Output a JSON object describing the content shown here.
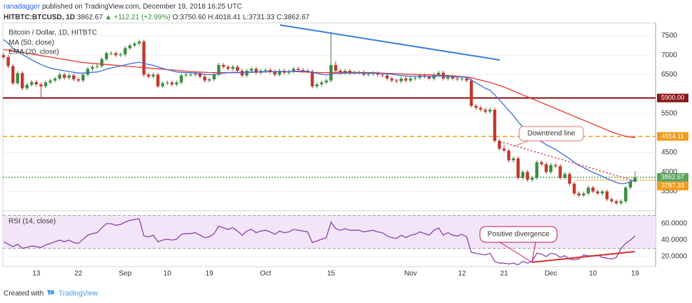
{
  "header": {
    "author": "ranadagger",
    "published": "published on TradingView.com, December 19, 2018 16:25 UTC",
    "quote": {
      "symbol": "HITBTC:BTCUSD, 1D",
      "price": "3862.67",
      "change": "▲ +112.21 (+2.99%)",
      "ohlc": "O:3750.60 H:4018.41 L:3731.33 C:3862.67"
    }
  },
  "chart_data": [
    {
      "type": "candlestick",
      "title": "Bitcoin / Dollar, 1D, HITBTC",
      "categories": [
        null,
        null,
        null,
        null,
        null,
        null,
        null,
        "13",
        null,
        null,
        null,
        null,
        null,
        null,
        null,
        null,
        "22",
        null,
        null,
        null,
        null,
        null,
        null,
        null,
        null,
        null,
        "Sep",
        null,
        null,
        null,
        null,
        null,
        null,
        null,
        null,
        "10",
        null,
        null,
        null,
        null,
        null,
        null,
        null,
        null,
        "19",
        null,
        null,
        null,
        null,
        null,
        null,
        null,
        null,
        null,
        null,
        null,
        "Oct",
        null,
        null,
        null,
        null,
        null,
        null,
        null,
        null,
        null,
        null,
        null,
        null,
        null,
        "15",
        null,
        null,
        null,
        null,
        null,
        null,
        null,
        null,
        null,
        null,
        null,
        null,
        null,
        null,
        null,
        null,
        "Nov",
        null,
        null,
        null,
        null,
        null,
        null,
        null,
        null,
        null,
        null,
        "12",
        null,
        null,
        null,
        null,
        null,
        null,
        null,
        null,
        "21",
        null,
        null,
        null,
        null,
        null,
        null,
        null,
        null,
        null,
        "Dec",
        null,
        null,
        null,
        null,
        null,
        null,
        null,
        null,
        "10",
        null,
        null,
        null,
        null,
        null,
        null,
        null,
        null,
        "19"
      ],
      "open": [
        7000,
        6950,
        6720,
        6280,
        6540,
        6150,
        6240,
        6310,
        6250,
        6200,
        6300,
        6350,
        6400,
        6500,
        6420,
        6480,
        6380,
        6350,
        6500,
        6650,
        6700,
        6720,
        6900,
        7050,
        7050,
        7000,
        7020,
        7180,
        7250,
        7300,
        7350,
        6500,
        6450,
        6500,
        6200,
        6280,
        6300,
        6250,
        6300,
        6480,
        6500,
        6500,
        6520,
        6450,
        6350,
        6380,
        6500,
        6750,
        6700,
        6650,
        6700,
        6600,
        6480,
        6600,
        6650,
        6550,
        6600,
        6620,
        6580,
        6500,
        6600,
        6550,
        6580,
        6650,
        6620,
        6600,
        6580,
        6200,
        6250,
        6300,
        6350,
        6750,
        6600,
        6550,
        6600,
        6550,
        6550,
        6560,
        6500,
        6520,
        6540,
        6500,
        6480,
        6400,
        6350,
        6330,
        6400,
        6350,
        6400,
        6420,
        6480,
        6450,
        6400,
        6500,
        6550,
        6400,
        6450,
        6400,
        6380,
        6400,
        6350,
        5700,
        5650,
        5600,
        5550,
        5600,
        4800,
        4600,
        4550,
        4300,
        4350,
        3850,
        4000,
        3800,
        3850,
        4250,
        4200,
        4000,
        4180,
        4150,
        3850,
        3950,
        3700,
        3450,
        3400,
        3450,
        3600,
        3500,
        3450,
        3500,
        3300,
        3250,
        3200,
        3250,
        3600,
        3750.6
      ],
      "high": [
        7050,
        7000,
        6770,
        6590,
        6590,
        6290,
        6360,
        6360,
        6300,
        6350,
        6400,
        6450,
        6550,
        6550,
        6530,
        6530,
        6430,
        6550,
        6700,
        6750,
        6770,
        6950,
        7100,
        7100,
        7100,
        7070,
        7230,
        7300,
        7350,
        7400,
        7400,
        6550,
        6550,
        6550,
        6330,
        6350,
        6350,
        6350,
        6530,
        6550,
        6550,
        6570,
        6570,
        6500,
        6430,
        6550,
        6800,
        6800,
        6750,
        6750,
        6750,
        6650,
        6650,
        6700,
        6700,
        6650,
        6670,
        6670,
        6630,
        6650,
        6650,
        6630,
        6700,
        6700,
        6670,
        6650,
        6630,
        6300,
        6350,
        6400,
        7600,
        6850,
        6650,
        6650,
        6650,
        6600,
        6610,
        6610,
        6570,
        6590,
        6590,
        6550,
        6530,
        6450,
        6400,
        6450,
        6450,
        6450,
        6470,
        6530,
        6530,
        6500,
        6550,
        6600,
        6600,
        6500,
        6500,
        6450,
        6450,
        6450,
        6400,
        5750,
        5700,
        5650,
        5650,
        5650,
        4850,
        4700,
        4600,
        4400,
        4400,
        4050,
        4050,
        3900,
        4300,
        4300,
        4250,
        4230,
        4230,
        4200,
        4000,
        4000,
        3750,
        3500,
        3500,
        3650,
        3650,
        3550,
        3550,
        3550,
        3350,
        3300,
        3300,
        3650,
        3800,
        4018.41
      ],
      "low": [
        6900,
        6670,
        6230,
        6230,
        6100,
        6100,
        6190,
        6200,
        5900,
        6150,
        6250,
        6300,
        6350,
        6370,
        6370,
        6330,
        6300,
        6300,
        6450,
        6600,
        6650,
        6670,
        6850,
        7000,
        6950,
        6950,
        6970,
        7130,
        7200,
        7250,
        6450,
        6400,
        6400,
        6150,
        6150,
        6230,
        6200,
        6200,
        6250,
        6430,
        6450,
        6450,
        6400,
        6300,
        6300,
        6330,
        6450,
        6650,
        6600,
        6600,
        6550,
        6430,
        6430,
        6550,
        6500,
        6500,
        6550,
        6530,
        6450,
        6450,
        6500,
        6500,
        6530,
        6570,
        6550,
        6530,
        6150,
        6150,
        6200,
        6250,
        6300,
        6550,
        6500,
        6500,
        6500,
        6500,
        6500,
        6450,
        6450,
        6470,
        6450,
        6430,
        6350,
        6300,
        6280,
        6280,
        6300,
        6300,
        6350,
        6370,
        6400,
        6350,
        6350,
        6450,
        6350,
        6350,
        6350,
        6330,
        6330,
        6300,
        5650,
        5600,
        5550,
        5500,
        5500,
        4750,
        4550,
        4500,
        4250,
        4250,
        3800,
        3800,
        3750,
        3750,
        3800,
        4150,
        3950,
        3950,
        4100,
        3800,
        3800,
        3650,
        3400,
        3350,
        3350,
        3400,
        3450,
        3400,
        3400,
        3250,
        3200,
        3150,
        3150,
        3200,
        3550,
        3731.33
      ],
      "close": [
        6950,
        6720,
        6280,
        6540,
        6150,
        6240,
        6310,
        6250,
        6200,
        6300,
        6350,
        6400,
        6500,
        6420,
        6480,
        6380,
        6350,
        6500,
        6650,
        6700,
        6720,
        6900,
        7050,
        7050,
        7000,
        7020,
        7180,
        7250,
        7300,
        7350,
        6500,
        6450,
        6500,
        6200,
        6280,
        6300,
        6250,
        6300,
        6480,
        6500,
        6500,
        6520,
        6450,
        6350,
        6380,
        6500,
        6750,
        6700,
        6650,
        6700,
        6600,
        6480,
        6600,
        6650,
        6550,
        6600,
        6620,
        6580,
        6500,
        6600,
        6550,
        6580,
        6650,
        6620,
        6600,
        6580,
        6200,
        6250,
        6300,
        6350,
        6750,
        6600,
        6550,
        6600,
        6550,
        6550,
        6560,
        6500,
        6520,
        6540,
        6500,
        6480,
        6400,
        6350,
        6330,
        6400,
        6350,
        6400,
        6420,
        6480,
        6450,
        6400,
        6500,
        6550,
        6400,
        6450,
        6400,
        6380,
        6400,
        6350,
        5700,
        5650,
        5600,
        5550,
        5600,
        4800,
        4600,
        4550,
        4300,
        4350,
        3850,
        4000,
        3800,
        3850,
        4250,
        4200,
        4000,
        4180,
        4150,
        3850,
        3950,
        3700,
        3450,
        3400,
        3450,
        3600,
        3500,
        3450,
        3500,
        3300,
        3250,
        3200,
        3250,
        3600,
        3750,
        3862.67
      ],
      "up_color": "#3d8b40",
      "down_color": "#c0392b",
      "series": [
        {
          "name": "MA (50, close)",
          "color": "#e53935",
          "values": [
            7150,
            7130,
            7110,
            7090,
            7070,
            7050,
            7030,
            7010,
            6990,
            6970,
            6950,
            6930,
            6910,
            6890,
            6870,
            6850,
            6830,
            6810,
            6800,
            6790,
            6780,
            6770,
            6760,
            6750,
            6740,
            6730,
            6720,
            6710,
            6700,
            6690,
            6680,
            6670,
            6660,
            6650,
            6640,
            6630,
            6620,
            6610,
            6600,
            6590,
            6580,
            6570,
            6565,
            6560,
            6555,
            6550,
            6550,
            6550,
            6550,
            6550,
            6550,
            6550,
            6555,
            6560,
            6565,
            6570,
            6570,
            6575,
            6580,
            6580,
            6580,
            6580,
            6580,
            6575,
            6570,
            6565,
            6560,
            6555,
            6550,
            6550,
            6555,
            6560,
            6560,
            6560,
            6560,
            6560,
            6555,
            6555,
            6550,
            6550,
            6545,
            6540,
            6535,
            6530,
            6525,
            6520,
            6515,
            6510,
            6505,
            6500,
            6500,
            6495,
            6490,
            6485,
            6480,
            6475,
            6470,
            6460,
            6450,
            6440,
            6420,
            6390,
            6360,
            6330,
            6300,
            6260,
            6220,
            6180,
            6130,
            6080,
            6030,
            5980,
            5930,
            5880,
            5830,
            5780,
            5730,
            5680,
            5630,
            5580,
            5530,
            5480,
            5430,
            5380,
            5330,
            5280,
            5230,
            5180,
            5130,
            5080,
            5030,
            4990,
            4950,
            4920,
            4900,
            4880
          ]
        },
        {
          "name": "EMA (20, close)",
          "color": "#3b6fd6",
          "values": [
            7400,
            7300,
            7180,
            7120,
            7020,
            6950,
            6880,
            6820,
            6760,
            6710,
            6670,
            6640,
            6620,
            6600,
            6580,
            6560,
            6540,
            6540,
            6550,
            6560,
            6570,
            6600,
            6640,
            6670,
            6700,
            6720,
            6750,
            6780,
            6800,
            6820,
            6790,
            6760,
            6740,
            6700,
            6660,
            6630,
            6600,
            6570,
            6560,
            6550,
            6550,
            6540,
            6530,
            6510,
            6500,
            6500,
            6520,
            6540,
            6550,
            6560,
            6560,
            6550,
            6560,
            6570,
            6570,
            6570,
            6580,
            6580,
            6570,
            6580,
            6580,
            6580,
            6590,
            6590,
            6590,
            6590,
            6560,
            6530,
            6510,
            6490,
            6520,
            6530,
            6530,
            6540,
            6540,
            6540,
            6540,
            6540,
            6540,
            6540,
            6530,
            6530,
            6520,
            6510,
            6490,
            6480,
            6470,
            6460,
            6460,
            6460,
            6460,
            6450,
            6460,
            6470,
            6460,
            6460,
            6450,
            6440,
            6440,
            6430,
            6360,
            6290,
            6220,
            6150,
            6100,
            5980,
            5850,
            5720,
            5580,
            5450,
            5290,
            5160,
            5030,
            4920,
            4850,
            4780,
            4700,
            4640,
            4580,
            4500,
            4420,
            4340,
            4250,
            4170,
            4110,
            4050,
            3990,
            3940,
            3890,
            3830,
            3780,
            3730,
            3700,
            3710,
            3750,
            3790
          ]
        }
      ],
      "ylim": [
        3040,
        7830
      ],
      "yticks": [
        3500,
        4000,
        4500,
        5500,
        6500,
        7000,
        7500
      ],
      "grid": true,
      "levels": [
        {
          "value": 5900,
          "label": "5900.00",
          "color": "#8b1a1a",
          "style": "solid"
        },
        {
          "value": 4914.11,
          "label": "4914.11",
          "color": "#f59b1c",
          "style": "dashed"
        },
        {
          "value": 3862.67,
          "label": "3862.67",
          "color": "#5aa55e",
          "style": "dotted"
        },
        {
          "value": 3787.33,
          "label": "3787.33",
          "color": "#f59b1c",
          "style": "dotted"
        }
      ],
      "annotation": "Downtrend line"
    },
    {
      "type": "line",
      "title": "RSI (14, close)",
      "color": "#8e44ad",
      "values": [
        38,
        35,
        32,
        35,
        30,
        31,
        33,
        32,
        31,
        34,
        36,
        38,
        40,
        38,
        40,
        37,
        36,
        41,
        46,
        48,
        49,
        55,
        60,
        60,
        58,
        59,
        62,
        64,
        65,
        66,
        45,
        44,
        46,
        38,
        40,
        41,
        40,
        41,
        47,
        48,
        48,
        49,
        46,
        43,
        44,
        48,
        57,
        55,
        53,
        55,
        51,
        46,
        51,
        53,
        49,
        51,
        52,
        50,
        47,
        51,
        49,
        50,
        53,
        52,
        51,
        50,
        37,
        39,
        41,
        43,
        62,
        54,
        52,
        54,
        52,
        52,
        52,
        50,
        51,
        52,
        50,
        49,
        45,
        43,
        42,
        46,
        43,
        46,
        47,
        50,
        48,
        46,
        52,
        55,
        46,
        49,
        46,
        45,
        47,
        44,
        25,
        24,
        23,
        22,
        24,
        14,
        12,
        12,
        11,
        12,
        10,
        14,
        12,
        14,
        24,
        23,
        20,
        24,
        23,
        19,
        21,
        17,
        16,
        17,
        22,
        21,
        21,
        22,
        19,
        18,
        17,
        19,
        30,
        36,
        40,
        45
      ],
      "ylim": [
        8.7,
        73.9
      ],
      "yticks": [
        {
          "value": 20,
          "label": "20.0000"
        },
        {
          "value": 40,
          "label": "40.0000"
        },
        {
          "value": 60,
          "label": "60.0000"
        }
      ],
      "bands": [
        30,
        70
      ],
      "band_color": "#f3e5f8",
      "annotation": "Positive divergence"
    }
  ],
  "footer": {
    "created": "Created with",
    "brand": "TradingView"
  }
}
